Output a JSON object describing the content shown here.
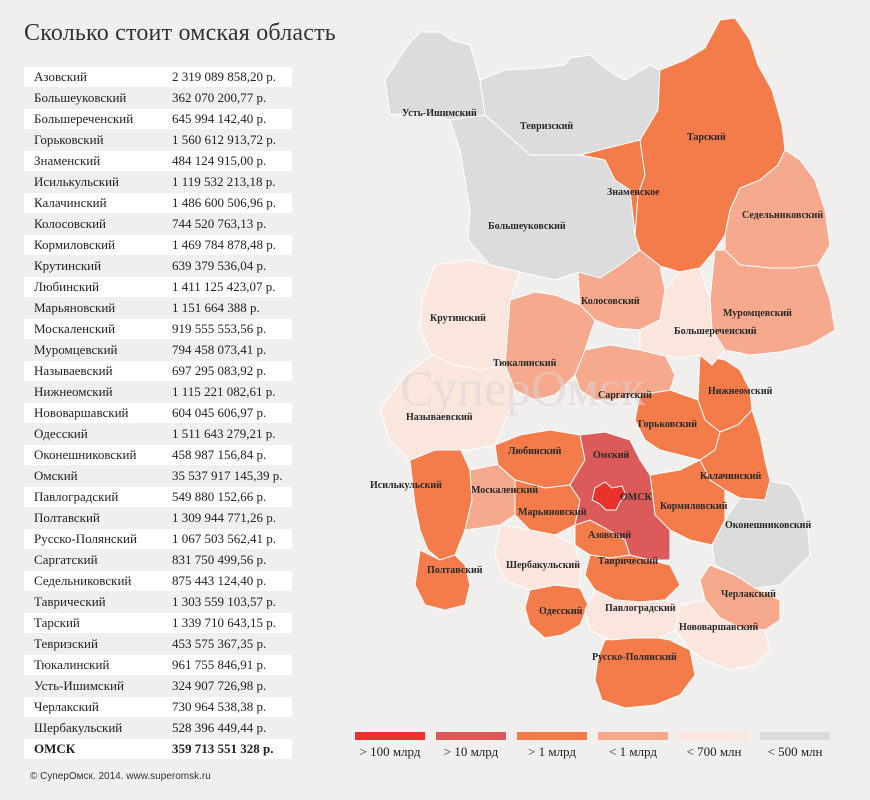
{
  "title": "Сколько стоит омская область",
  "table": [
    {
      "name": "Азовский",
      "value": "2 319 089 858,20 р."
    },
    {
      "name": "Большеуковский",
      "value": "362 070 200,77 р."
    },
    {
      "name": "Большереченский",
      "value": "645 994 142,40 р."
    },
    {
      "name": "Горьковский",
      "value": "1 560 612 913,72 р."
    },
    {
      "name": "Знаменский",
      "value": "484 124 915,00 р."
    },
    {
      "name": "Исилькульский",
      "value": "1 119 532 213,18 р."
    },
    {
      "name": "Калачинский",
      "value": "1 486 600 506,96 р."
    },
    {
      "name": "Колосовский",
      "value": "744 520 763,13 р."
    },
    {
      "name": "Кормиловский",
      "value": "1 469 784 878,48 р."
    },
    {
      "name": "Крутинский",
      "value": "639 379 536,04 р."
    },
    {
      "name": "Любинский",
      "value": "1 411 125 423,07 р."
    },
    {
      "name": "Марьяновский",
      "value": "1 151 664 388 р."
    },
    {
      "name": "Москаленский",
      "value": "919 555 553,56 р."
    },
    {
      "name": "Муромцевский",
      "value": "794 458 073,41 р."
    },
    {
      "name": "Называевский",
      "value": "697 295 083,92 р."
    },
    {
      "name": "Нижнеомский",
      "value": "1 115 221 082,61 р."
    },
    {
      "name": "Нововаршавский",
      "value": "604 045 606,97 р."
    },
    {
      "name": "Одесский",
      "value": "1 511 643 279,21 р."
    },
    {
      "name": "Оконешниковский",
      "value": "458 987 156,84 р."
    },
    {
      "name": "Омский",
      "value": "35 537 917 145,39 р."
    },
    {
      "name": "Павлоградский",
      "value": "549 880 152,66 р."
    },
    {
      "name": "Полтавский",
      "value": "1 309 944 771,26 р."
    },
    {
      "name": "Русско-Полянский",
      "value": "1 067 503 562,41 р."
    },
    {
      "name": "Саргатский",
      "value": "831 750 499,56 р."
    },
    {
      "name": "Седельниковский",
      "value": "875 443 124,40 р."
    },
    {
      "name": "Таврический",
      "value": "1 303 559 103,57 р."
    },
    {
      "name": "Тарский",
      "value": "1 339 710 643,15 р."
    },
    {
      "name": "Тевризский",
      "value": "453 575 367,35 р."
    },
    {
      "name": "Тюкалинский",
      "value": "961 755 846,91 р."
    },
    {
      "name": "Усть-Ишимский",
      "value": "324 907 726,98 р."
    },
    {
      "name": "Черлакский",
      "value": "730 964 538,38 р."
    },
    {
      "name": "Шербакульский",
      "value": "528 396 449,44 р."
    },
    {
      "name": "ОМСК",
      "value": "359 713 551 328 р.",
      "total": true
    }
  ],
  "legend": [
    {
      "label": "> 100 млрд",
      "color": "#e8322b"
    },
    {
      "label": "> 10 млрд",
      "color": "#dc5a59"
    },
    {
      "label": "> 1 млрд",
      "color": "#f47c4b"
    },
    {
      "label": "< 1 млрд",
      "color": "#f6a98c"
    },
    {
      "label": "< 700 млн",
      "color": "#fbe6dd"
    },
    {
      "label": "< 500 млн",
      "color": "#dcdcdc"
    }
  ],
  "map": {
    "watermark": "СуперОмск",
    "labels": {
      "ust_ishim": "Усть-Ишимский",
      "tevriz": "Тевризский",
      "tara": "Тарский",
      "znamenskoe": "Знаменское",
      "bolsheuk": "Большеуковский",
      "sedeln": "Седельниковский",
      "krutinka": "Крутинский",
      "kolosovka": "Колосовский",
      "muromtsevo": "Муромцевский",
      "bolsherech": "Большереченский",
      "tyukalinsk": "Тюкалинский",
      "sargatka": "Саргатский",
      "nizhneomka": "Нижнеомский",
      "nazyvaevsk": "Называевский",
      "gorkovskoe": "Горьковский",
      "lyubinsky": "Любинский",
      "omsky": "Омский",
      "kalachinsk": "Калачинский",
      "isilkul": "Исилькульский",
      "moskalenki": "Москаленский",
      "omsk": "ОМСК",
      "kormilovka": "Кормиловский",
      "maryanovka": "Марьяновский",
      "okoneshn": "Оконешниковский",
      "azovo": "Азовский",
      "sherbakul": "Шербакульский",
      "tavricheskoe": "Таврический",
      "poltavka": "Полтавский",
      "cherlak": "Черлакский",
      "odesskoe": "Одесский",
      "pavlograd": "Павлоградский",
      "novovarsh": "Нововаршавский",
      "russkaya_polyana": "Русско-Полянский"
    }
  },
  "copyright": "© СуперОмск. 2014. www.superomsk.ru"
}
